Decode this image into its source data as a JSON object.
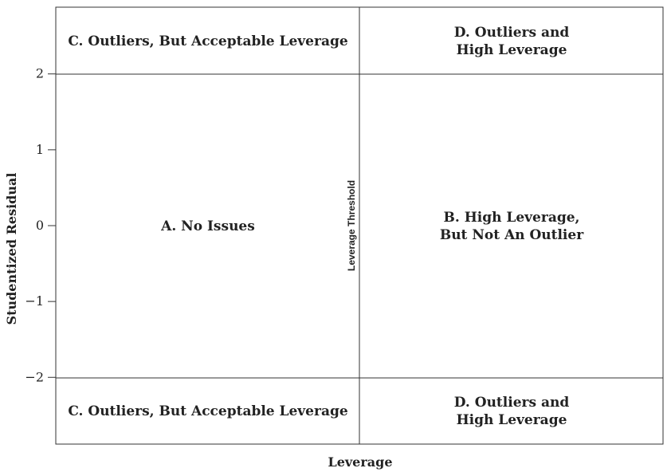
{
  "chart_data": {
    "type": "scatter",
    "title": "",
    "xlabel": "Leverage",
    "ylabel": "Studentized Residual",
    "ylim": [
      -2.88,
      2.88
    ],
    "yticks": [
      {
        "value": 2,
        "label": "2"
      },
      {
        "value": 1,
        "label": "1"
      },
      {
        "value": 0,
        "label": "0"
      },
      {
        "value": -1,
        "label": "−1"
      },
      {
        "value": -2,
        "label": "−2"
      }
    ],
    "grid": false,
    "reference_lines": {
      "horizontal": [
        2,
        -2
      ],
      "vertical": {
        "label": "Leverage Threshold"
      }
    },
    "regions": [
      {
        "id": "top-left",
        "lines": [
          "C. Outliers, But Acceptable Leverage"
        ]
      },
      {
        "id": "top-right",
        "lines": [
          "D. Outliers and",
          "High Leverage"
        ]
      },
      {
        "id": "mid-left",
        "lines": [
          "A. No Issues"
        ]
      },
      {
        "id": "mid-right",
        "lines": [
          "B. High Leverage,",
          "But Not An Outlier"
        ]
      },
      {
        "id": "bottom-left",
        "lines": [
          "C. Outliers, But Acceptable Leverage"
        ]
      },
      {
        "id": "bottom-right",
        "lines": [
          "D. Outliers and",
          "High Leverage"
        ]
      }
    ]
  }
}
